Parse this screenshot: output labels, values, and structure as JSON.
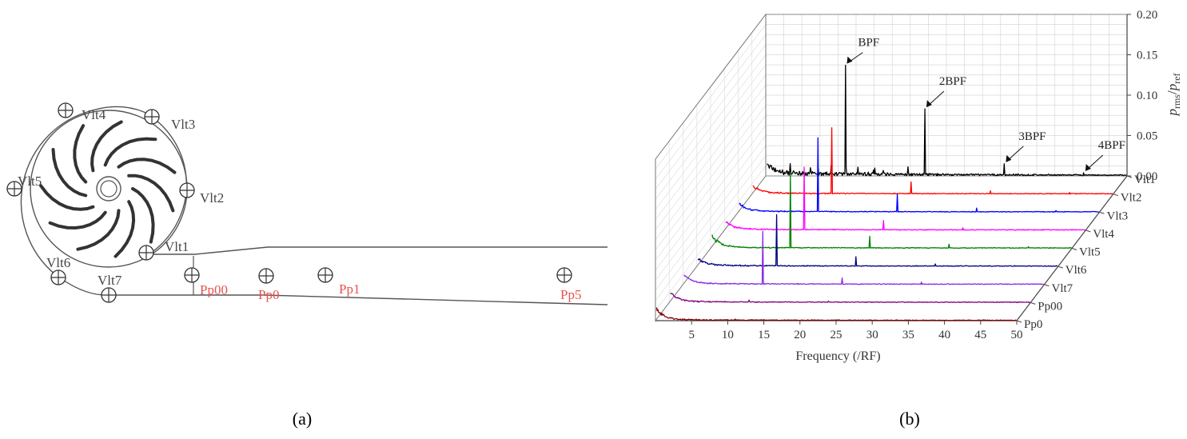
{
  "panel_a": {
    "caption": "(a)",
    "volute_probes": [
      "Vlt1",
      "Vlt2",
      "Vlt3",
      "Vlt4",
      "Vlt5",
      "Vlt6",
      "Vlt7"
    ],
    "pipe_probes": [
      "Pp00",
      "Pp0",
      "Pp1",
      "Pp5"
    ],
    "pipe_label_color": "#e8534f",
    "line_color": "#555555"
  },
  "panel_b": {
    "caption": "(b)",
    "chart_data": {
      "type": "line",
      "view": "3d waterfall",
      "xlabel": "Frequency (/RF)",
      "zlabel_main": "p",
      "zlabel_sub_num": "rms",
      "zlabel_sub_den": "ref",
      "xticks": [
        5,
        10,
        15,
        20,
        25,
        30,
        35,
        40,
        45,
        50
      ],
      "xlim": [
        0,
        50
      ],
      "zticks": [
        "0.00",
        "0.05",
        "0.10",
        "0.15",
        "0.20"
      ],
      "zlim": [
        0,
        0.2
      ],
      "grid": true,
      "annotations": [
        {
          "text": "BPF",
          "x": 11
        },
        {
          "text": "2BPF",
          "x": 22
        },
        {
          "text": "3BPF",
          "x": 33
        },
        {
          "text": "4BPF",
          "x": 44
        }
      ],
      "series": [
        {
          "name": "Vlt1",
          "color": "#000000",
          "peaks": [
            0.137,
            0.083,
            0.015,
            0.004
          ],
          "low_freq": 0.015
        },
        {
          "name": "Vlt2",
          "color": "#ff0000",
          "peaks": [
            0.082,
            0.015,
            0.004,
            0.002
          ],
          "low_freq": 0.012
        },
        {
          "name": "Vlt3",
          "color": "#0000ff",
          "peaks": [
            0.092,
            0.022,
            0.005,
            0.002
          ],
          "low_freq": 0.012
        },
        {
          "name": "Vlt4",
          "color": "#ff00ff",
          "peaks": [
            0.078,
            0.012,
            0.003,
            0.001
          ],
          "low_freq": 0.012
        },
        {
          "name": "Vlt5",
          "color": "#008000",
          "peaks": [
            0.093,
            0.015,
            0.005,
            0.002
          ],
          "low_freq": 0.02
        },
        {
          "name": "Vlt6",
          "color": "#000080",
          "peaks": [
            0.064,
            0.012,
            0.003,
            0.001
          ],
          "low_freq": 0.012
        },
        {
          "name": "Vlt7",
          "color": "#8a2be2",
          "peaks": [
            0.066,
            0.008,
            0.003,
            0.001
          ],
          "low_freq": 0.014
        },
        {
          "name": "Pp00",
          "color": "#800080",
          "peaks": [
            0.003,
            0.002,
            0.001,
            0.0005
          ],
          "low_freq": 0.015
        },
        {
          "name": "Pp0",
          "color": "#800000",
          "peaks": [
            0.002,
            0.001,
            0.0005,
            0.0003
          ],
          "low_freq": 0.017
        }
      ]
    }
  }
}
